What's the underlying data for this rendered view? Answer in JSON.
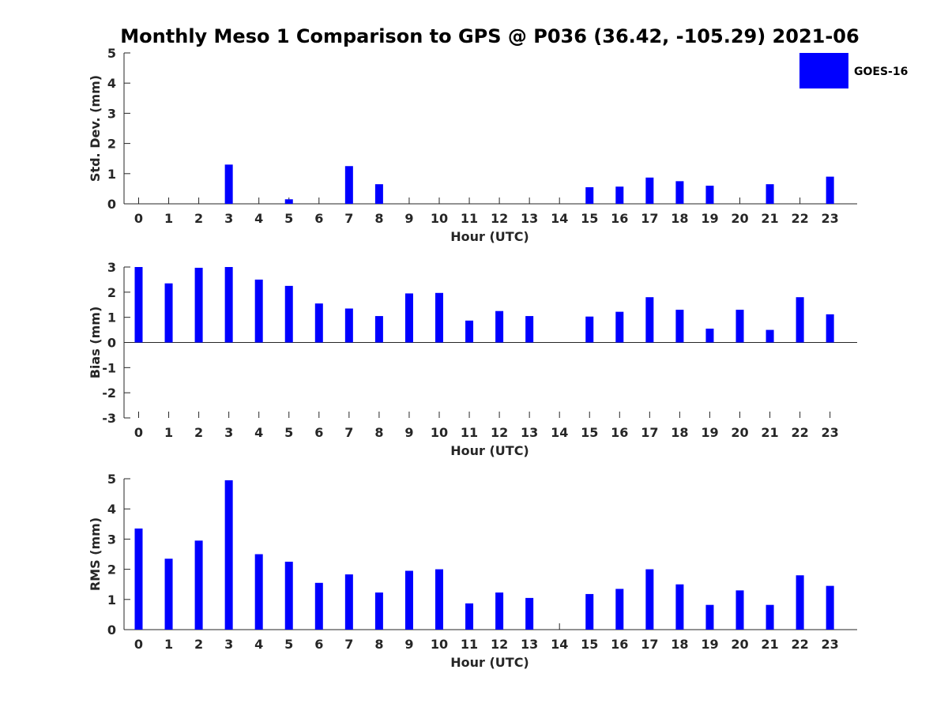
{
  "figure": {
    "title": "Monthly Meso 1 Comparison to GPS @ P036 (36.42, -105.29) 2021-06"
  },
  "legend": {
    "label": "GOES-16",
    "color": "#0000ff",
    "placement": "top-right"
  },
  "chart_data": [
    {
      "type": "bar",
      "categories": [
        "0",
        "1",
        "2",
        "3",
        "4",
        "5",
        "6",
        "7",
        "8",
        "9",
        "10",
        "11",
        "12",
        "13",
        "14",
        "15",
        "16",
        "17",
        "18",
        "19",
        "20",
        "21",
        "22",
        "23"
      ],
      "series": [
        {
          "name": "GOES-16",
          "values": [
            null,
            null,
            null,
            1.3,
            null,
            0.15,
            null,
            1.25,
            0.65,
            null,
            null,
            null,
            null,
            null,
            null,
            0.55,
            0.57,
            0.87,
            0.75,
            0.6,
            null,
            0.65,
            null,
            0.9
          ]
        }
      ],
      "xlabel": "Hour (UTC)",
      "ylabel": "Std. Dev. (mm)",
      "ylim": [
        0,
        5
      ],
      "yticks": [
        "0",
        "1",
        "2",
        "3",
        "4",
        "5"
      ],
      "grid": false
    },
    {
      "type": "bar",
      "categories": [
        "0",
        "1",
        "2",
        "3",
        "4",
        "5",
        "6",
        "7",
        "8",
        "9",
        "10",
        "11",
        "12",
        "13",
        "14",
        "15",
        "16",
        "17",
        "18",
        "19",
        "20",
        "21",
        "22",
        "23"
      ],
      "series": [
        {
          "name": "GOES-16",
          "values": [
            3.0,
            2.35,
            2.97,
            3.0,
            2.5,
            2.25,
            1.55,
            1.35,
            1.05,
            1.95,
            1.97,
            0.87,
            1.25,
            1.05,
            null,
            1.03,
            1.22,
            1.8,
            1.3,
            0.55,
            1.3,
            0.5,
            1.8,
            1.12
          ]
        }
      ],
      "xlabel": "Hour (UTC)",
      "ylabel": "Bias (mm)",
      "ylim": [
        -3,
        3
      ],
      "yticks": [
        "-3",
        "-2",
        "-1",
        "0",
        "1",
        "2",
        "3"
      ],
      "grid": false
    },
    {
      "type": "bar",
      "categories": [
        "0",
        "1",
        "2",
        "3",
        "4",
        "5",
        "6",
        "7",
        "8",
        "9",
        "10",
        "11",
        "12",
        "13",
        "14",
        "15",
        "16",
        "17",
        "18",
        "19",
        "20",
        "21",
        "22",
        "23"
      ],
      "series": [
        {
          "name": "GOES-16",
          "values": [
            3.35,
            2.35,
            2.95,
            4.95,
            2.5,
            2.25,
            1.55,
            1.83,
            1.23,
            1.95,
            2.0,
            0.87,
            1.23,
            1.05,
            null,
            1.18,
            1.35,
            2.0,
            1.5,
            0.82,
            1.3,
            0.82,
            1.8,
            1.45
          ]
        }
      ],
      "xlabel": "Hour (UTC)",
      "ylabel": "RMS (mm)",
      "ylim": [
        0,
        5
      ],
      "yticks": [
        "0",
        "1",
        "2",
        "3",
        "4",
        "5"
      ],
      "grid": false
    }
  ]
}
